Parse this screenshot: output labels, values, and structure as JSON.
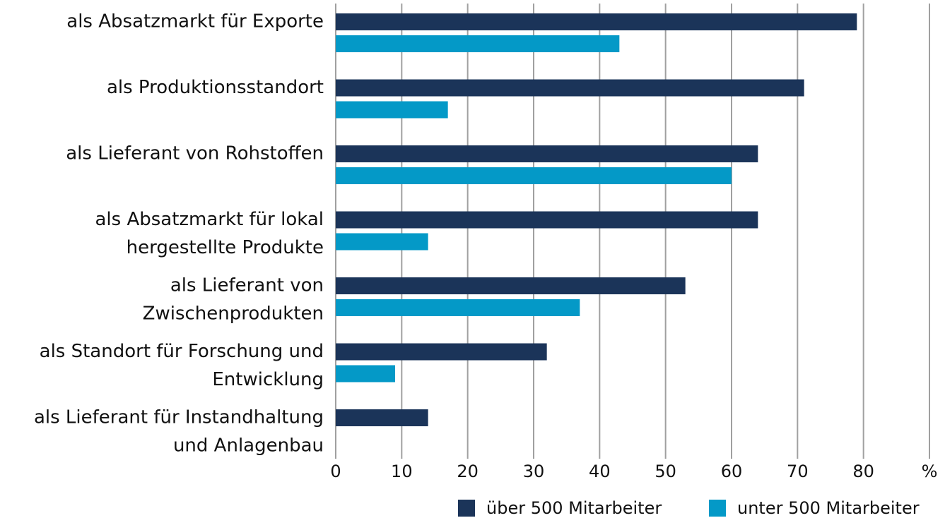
{
  "chart_data": {
    "type": "hbar",
    "categories": [
      [
        "als Absatzmarkt für Exporte"
      ],
      [
        "als Produktionsstandort"
      ],
      [
        "als Lieferant von Rohstoffen"
      ],
      [
        "als Absatzmarkt für lokal",
        "hergestellte Produkte"
      ],
      [
        "als Lieferant von",
        "Zwischenprodukten"
      ],
      [
        "als Standort für Forschung und",
        "Entwicklung"
      ],
      [
        "als Lieferant für Instandhaltung",
        "und Anlagenbau"
      ]
    ],
    "series": [
      {
        "name": "über 500 Mitarbeiter",
        "color": "#1b3459",
        "values": [
          79,
          71,
          64,
          64,
          53,
          32,
          14
        ]
      },
      {
        "name": "unter 500 Mitarbeiter",
        "color": "#0499c7",
        "values": [
          43,
          17,
          60,
          14,
          37,
          9,
          null
        ]
      }
    ],
    "xlim": [
      0,
      90
    ],
    "xticks": [
      0,
      10,
      20,
      30,
      40,
      50,
      60,
      70,
      80,
      {
        "value": 90,
        "label": "%"
      }
    ],
    "grid": true,
    "legend": "bottom-right"
  }
}
